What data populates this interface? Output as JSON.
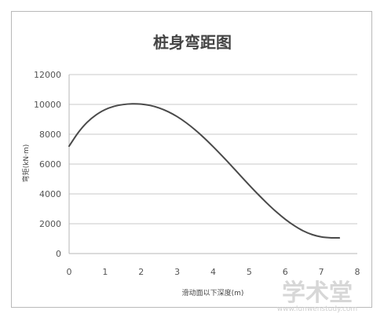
{
  "chart_data": {
    "type": "line",
    "title": "桩身弯距图",
    "xlabel": "滑动面以下深度(m)",
    "ylabel": "弯矩(kN·m)",
    "xlim": [
      0,
      8
    ],
    "ylim": [
      0,
      12000
    ],
    "x_ticks": [
      "0",
      "1",
      "2",
      "3",
      "4",
      "5",
      "6",
      "7",
      "8"
    ],
    "y_ticks": [
      "0",
      "2000",
      "4000",
      "6000",
      "8000",
      "10000",
      "12000"
    ],
    "grid": true,
    "legend": "none",
    "series": [
      {
        "color": "#4a4a4a",
        "x": [
          0,
          0.25,
          0.5,
          0.75,
          1.0,
          1.25,
          1.5,
          1.75,
          2.0,
          2.25,
          2.5,
          2.75,
          3.0,
          3.25,
          3.5,
          3.75,
          4.0,
          4.25,
          4.5,
          4.75,
          5.0,
          5.25,
          5.5,
          5.75,
          6.0,
          6.25,
          6.5,
          6.75,
          7.0,
          7.25,
          7.5
        ],
        "y": [
          7200,
          8100,
          8800,
          9300,
          9650,
          9870,
          9990,
          10040,
          10020,
          9930,
          9760,
          9510,
          9180,
          8770,
          8290,
          7750,
          7160,
          6540,
          5900,
          5240,
          4590,
          3960,
          3360,
          2800,
          2300,
          1870,
          1520,
          1270,
          1120,
          1060,
          1050
        ]
      }
    ]
  },
  "watermark": {
    "text": "学术堂",
    "url": "www.lunwenstudy.com"
  }
}
